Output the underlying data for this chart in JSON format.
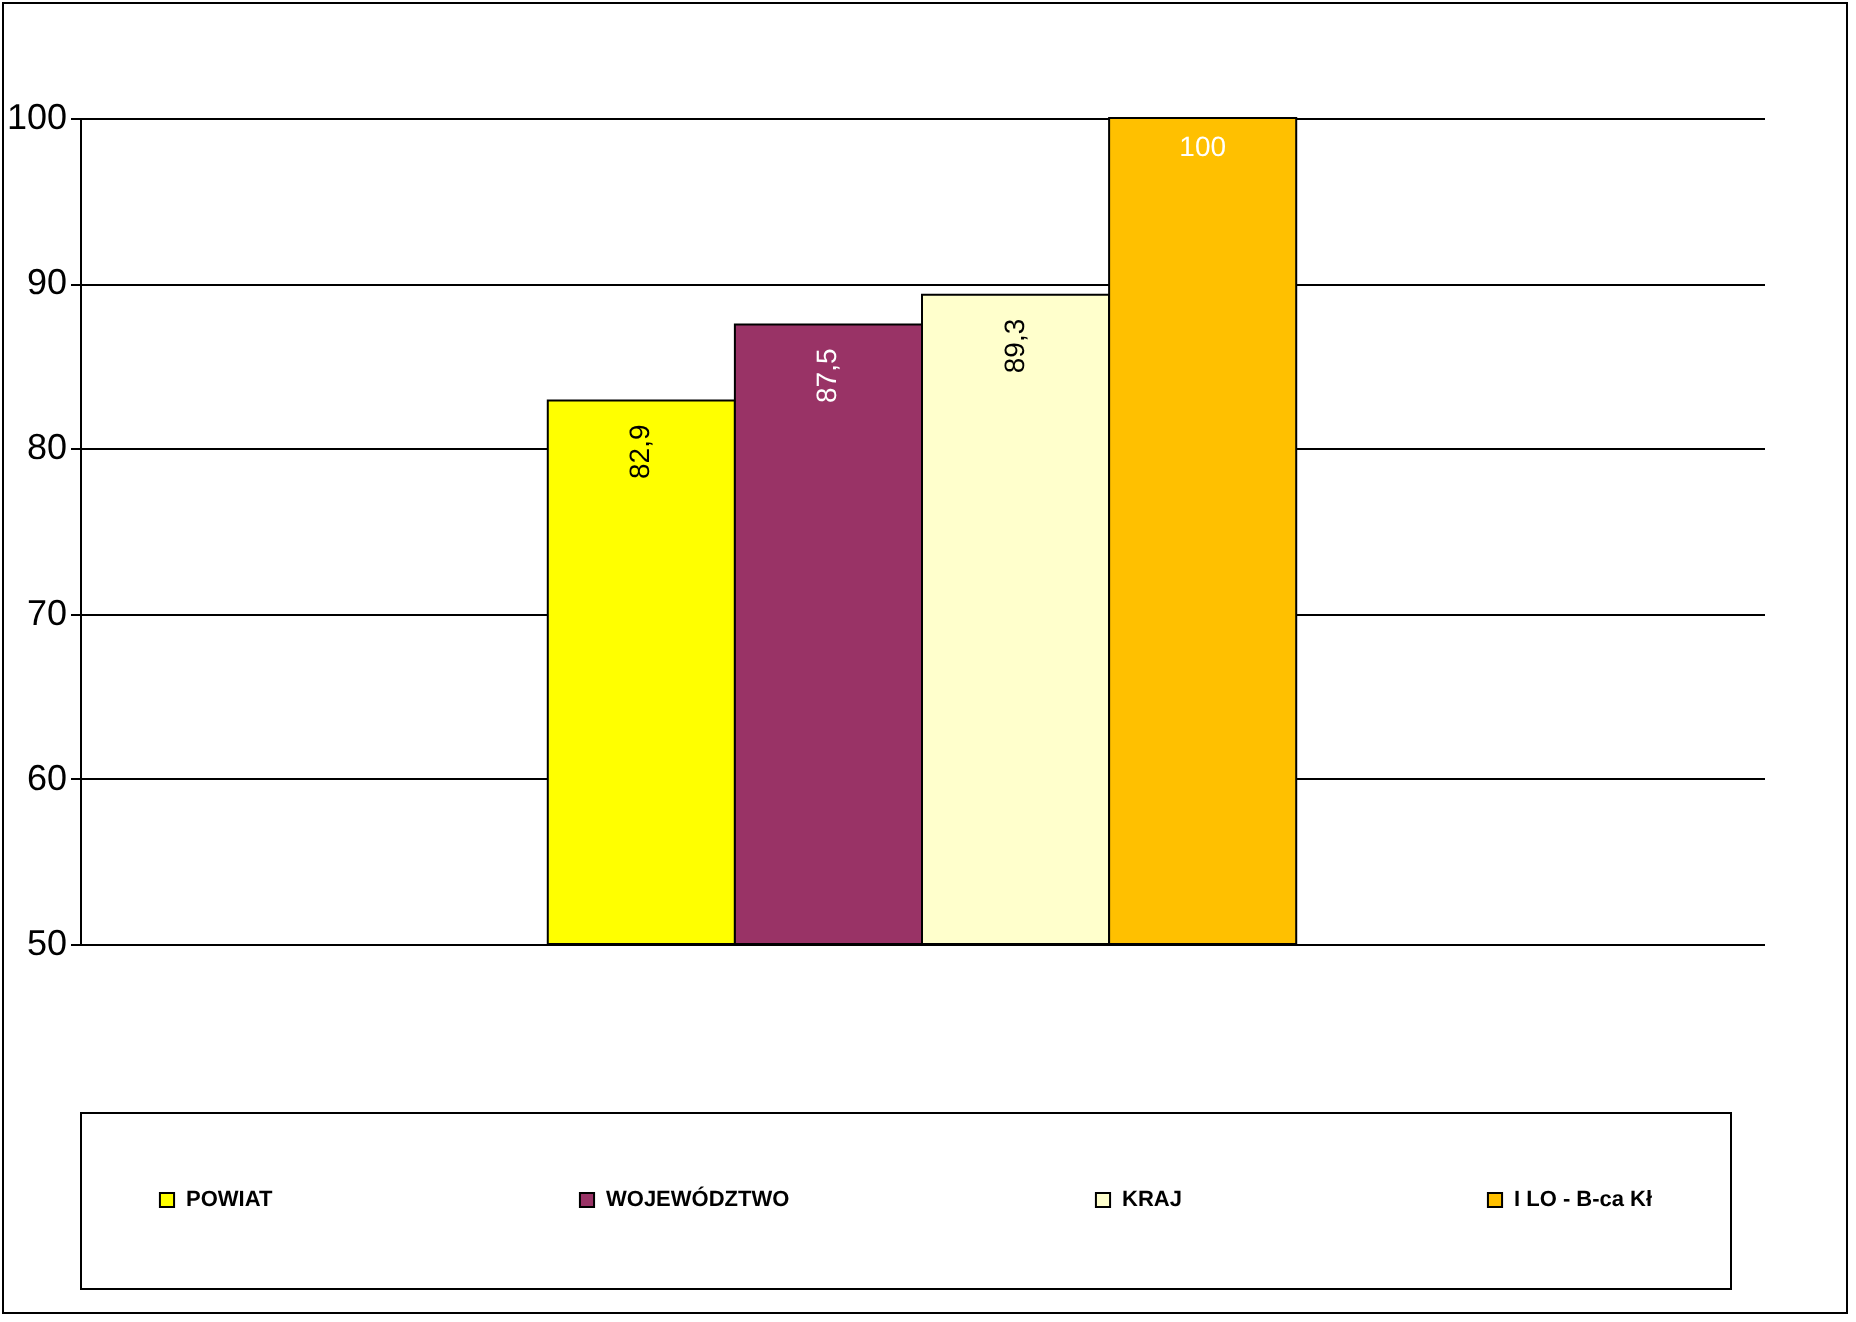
{
  "chart_data": {
    "type": "bar",
    "categories": [
      null
    ],
    "series": [
      {
        "name": "POWIAT",
        "color": "#ffff00",
        "values": [
          82.9
        ],
        "value_labels": [
          "82,9"
        ]
      },
      {
        "name": "WOJEWÓDZTWO",
        "color": "#993366",
        "values": [
          87.5
        ],
        "value_labels": [
          "87,5"
        ]
      },
      {
        "name": "KRAJ",
        "color": "#ffffcc",
        "values": [
          89.3
        ],
        "value_labels": [
          "89,3"
        ]
      },
      {
        "name": "I LO - B-ca Kł",
        "color": "#ffc000",
        "values": [
          100
        ],
        "value_labels": [
          "100"
        ]
      }
    ],
    "ylim": [
      50,
      100
    ],
    "yticks": [
      50,
      60,
      70,
      80,
      90,
      100
    ],
    "grid": "y",
    "legend": "bottom",
    "tick_labels": "y"
  }
}
